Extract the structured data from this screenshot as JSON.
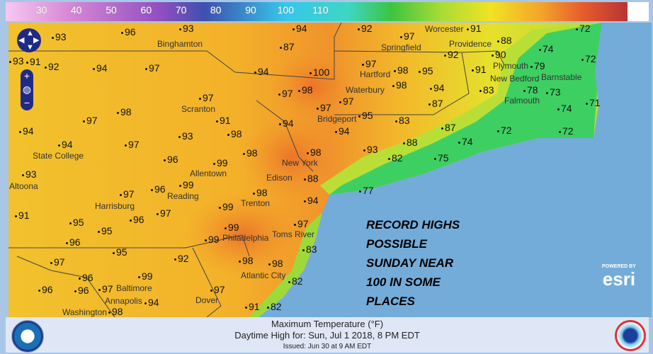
{
  "legend": {
    "ticks": [
      "30",
      "40",
      "50",
      "60",
      "70",
      "80",
      "90",
      "100",
      "110"
    ],
    "unit": "°F"
  },
  "colors": {
    "ocean": "#74acd9",
    "hot": "#f08a2a",
    "warm": "#f4c92a",
    "cool": "#3fcf6a"
  },
  "overlay_text": [
    "RECORD HIGHS",
    "POSSIBLE",
    "SUNDAY NEAR",
    "100 IN SOME",
    "PLACES"
  ],
  "temps": [
    "93",
    "96",
    "93",
    "94",
    "92",
    "97",
    "91",
    "72",
    "93",
    "87",
    "88",
    "74",
    "72",
    "90",
    "91",
    "92",
    "94",
    "97",
    "94",
    "100",
    "97",
    "98",
    "95",
    "92",
    "91",
    "79",
    "97",
    "98",
    "98",
    "94",
    "83",
    "78",
    "73",
    "97",
    "97",
    "97",
    "87",
    "74",
    "71",
    "97",
    "98",
    "91",
    "94",
    "95",
    "83",
    "94",
    "98",
    "93",
    "94",
    "87",
    "72",
    "72",
    "94",
    "97",
    "99",
    "98",
    "98",
    "93",
    "88",
    "74",
    "96",
    "82",
    "75",
    "93",
    "99",
    "88",
    "98",
    "96",
    "97",
    "77",
    "99",
    "94",
    "96",
    "97",
    "91",
    "95",
    "95",
    "99",
    "97",
    "96",
    "99",
    "95",
    "92",
    "83",
    "97",
    "98",
    "98",
    "96",
    "99",
    "97",
    "96",
    "96",
    "97",
    "82",
    "94",
    "98",
    "91",
    "82"
  ],
  "cities": [
    "Binghamton",
    "Scranton",
    "State College",
    "Altoona",
    "Harrisburg",
    "Reading",
    "Allentown",
    "Trenton",
    "Philadelphia",
    "Toms River",
    "New York",
    "Edison",
    "Bridgeport",
    "Waterbury",
    "Springfield",
    "Hartford",
    "Worcester",
    "Providence",
    "New Bedford",
    "Barnstable",
    "Plymouth",
    "Falmouth",
    "Atlantic City",
    "Dover",
    "Baltimore",
    "Annapolis",
    "Washington"
  ],
  "controls": {
    "zoom_in": "+",
    "zoom_out": "−"
  },
  "esri": {
    "powered": "POWERED BY",
    "brand": "esri"
  },
  "footer": {
    "title": "Maximum Temperature (°F)",
    "subtitle": "Daytime High for: Sun, Jul  1 2018,   8 PM EDT",
    "issued": "Issued: Jun 30 at 9 AM EDT"
  }
}
